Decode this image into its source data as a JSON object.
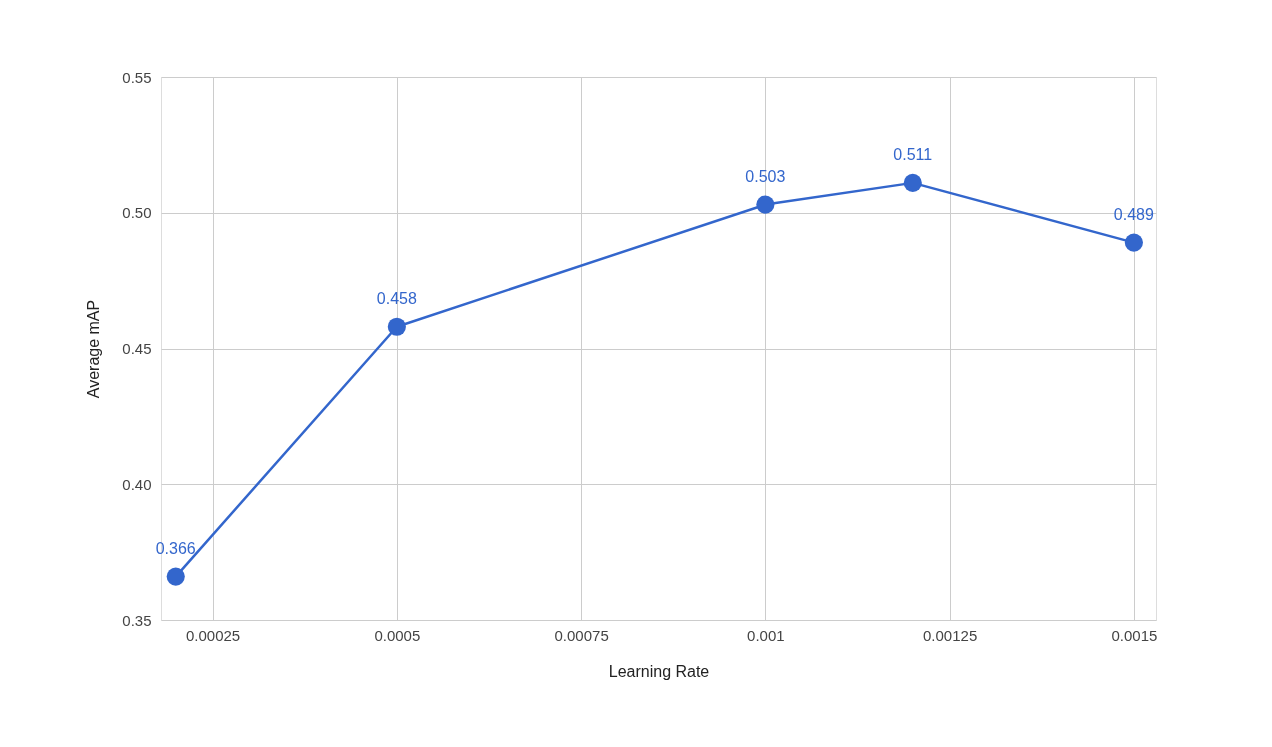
{
  "chart_data": {
    "type": "line",
    "xlabel": "Learning Rate",
    "ylabel": "Average mAP",
    "x": [
      0.0002,
      0.0005,
      0.001,
      0.0012,
      0.0015
    ],
    "series": [
      {
        "color": "#3366cc",
        "values": [
          0.366,
          0.458,
          0.503,
          0.511,
          0.489
        ]
      }
    ],
    "xlim": [
      0.00018,
      0.00153
    ],
    "xticks": [
      0.00025,
      0.0005,
      0.00075,
      0.001,
      0.00125,
      0.0015
    ],
    "ylim": [
      0.35,
      0.55
    ],
    "yticks": [
      {
        "value": 0.35,
        "label": "0.35"
      },
      {
        "value": 0.4,
        "label": "0.40"
      },
      {
        "value": 0.45,
        "label": "0.45"
      },
      {
        "value": 0.5,
        "label": "0.50"
      },
      {
        "value": 0.55,
        "label": "0.55"
      }
    ],
    "data_labels": true,
    "grid": true,
    "marker": "circle",
    "line_style": "solid"
  }
}
